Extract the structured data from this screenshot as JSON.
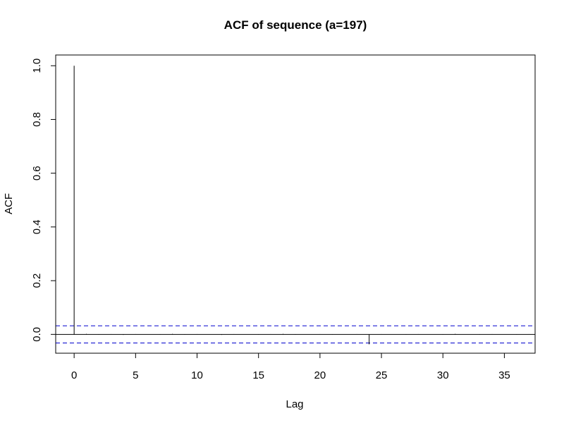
{
  "chart_data": {
    "type": "bar",
    "subtype": "acf",
    "title": "ACF of sequence (a=197)",
    "xlabel": "Lag",
    "ylabel": "ACF",
    "xlim": [
      -1.5,
      37.5
    ],
    "ylim": [
      -0.07,
      1.04
    ],
    "x_ticks": [
      0,
      5,
      10,
      15,
      20,
      25,
      30,
      35
    ],
    "y_ticks": [
      0.0,
      0.2,
      0.4,
      0.6,
      0.8,
      1.0
    ],
    "x_tick_labels": [
      "0",
      "5",
      "10",
      "15",
      "20",
      "25",
      "30",
      "35"
    ],
    "y_tick_labels": [
      "0.0",
      "0.2",
      "0.4",
      "0.6",
      "0.8",
      "1.0"
    ],
    "lags": [
      0,
      1,
      2,
      3,
      4,
      5,
      6,
      7,
      8,
      9,
      10,
      11,
      12,
      13,
      14,
      15,
      16,
      17,
      18,
      19,
      20,
      21,
      22,
      23,
      24,
      25,
      26,
      27,
      28,
      29,
      30,
      31,
      32,
      33,
      34,
      35,
      36,
      37
    ],
    "values": [
      1.0,
      0.002,
      -0.001,
      0.001,
      -0.002,
      0.001,
      0.0,
      -0.001,
      0.002,
      -0.001,
      0.001,
      0.0,
      -0.002,
      0.001,
      0.0,
      -0.001,
      0.001,
      0.002,
      -0.001,
      0.0,
      0.001,
      -0.001,
      0.0,
      0.001,
      -0.037,
      0.001,
      0.0,
      -0.001,
      0.001,
      0.0,
      -0.001,
      0.002,
      0.0,
      -0.001,
      0.001,
      0.0,
      -0.001,
      0.001
    ],
    "confidence_bound": 0.032,
    "colors": {
      "bars": "#000000",
      "confidence": "#0000CD",
      "axis": "#000000"
    }
  }
}
